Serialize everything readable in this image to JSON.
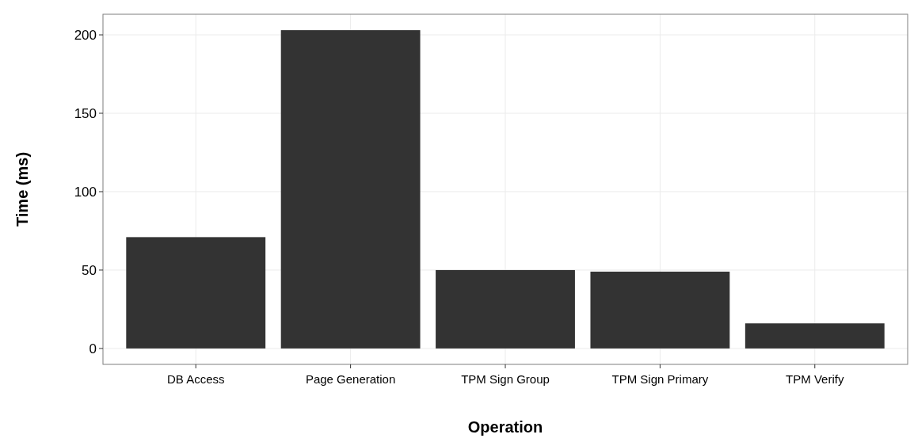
{
  "chart_data": {
    "type": "bar",
    "xlabel": "Operation",
    "ylabel": "Time (ms)",
    "categories": [
      "DB Access",
      "Page Generation",
      "TPM Sign Group",
      "TPM Sign Primary",
      "TPM Verify"
    ],
    "values": [
      71,
      203,
      50,
      49,
      16
    ],
    "color": "#333333",
    "ylim": [
      -10.15,
      213.15
    ],
    "yticks": [
      0,
      50,
      100,
      150,
      200
    ],
    "grid": true
  }
}
